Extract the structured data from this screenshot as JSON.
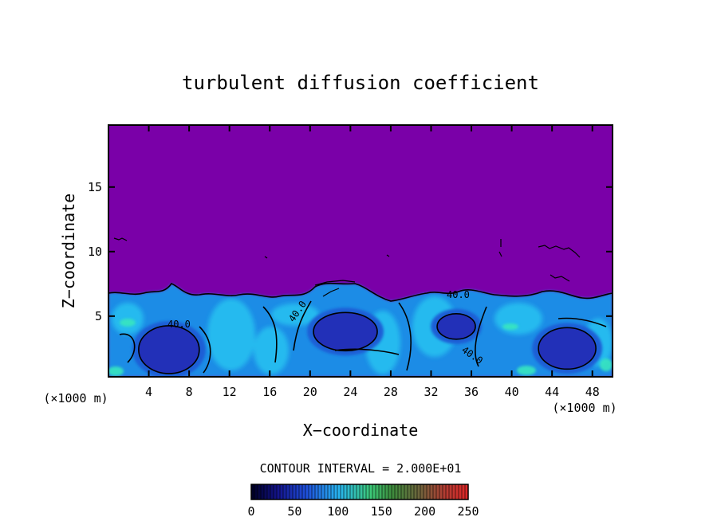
{
  "chart_data": {
    "type": "heatmap",
    "title": "turbulent diffusion coefficient",
    "xlabel": "X−coordinate",
    "ylabel": "Z−coordinate",
    "x_unit": "(×1000 m)",
    "xlim": [
      0,
      50
    ],
    "ylim": [
      0.3,
      19.8
    ],
    "x_ticks": [
      4,
      8,
      12,
      16,
      20,
      24,
      28,
      32,
      36,
      40,
      44,
      48
    ],
    "y_ticks": [
      5,
      10,
      15
    ],
    "contour_interval_text": "CONTOUR INTERVAL = 2.000E+01",
    "contour_labels": [
      "40.0",
      "40.0",
      "40.0",
      "40.0"
    ],
    "colorbar": {
      "min": 0,
      "max": 250,
      "ticks": [
        0,
        50,
        100,
        150,
        200,
        250
      ]
    },
    "turbulent_layer_top_z": 6.5,
    "eddies": [
      {
        "x": 6,
        "z": 2.4,
        "value": 20
      },
      {
        "x": 23.5,
        "z": 3.8,
        "value": 20
      },
      {
        "x": 34.5,
        "z": 4.2,
        "value": 20
      },
      {
        "x": 45.5,
        "z": 2.5,
        "value": 20
      }
    ],
    "background_value": 0,
    "grid": false,
    "colors": {
      "background_field": "#7a00a8",
      "low": "#1a2aa0",
      "mid": "#22aaee",
      "high": "#35e0c0",
      "contour": "#000000"
    }
  }
}
